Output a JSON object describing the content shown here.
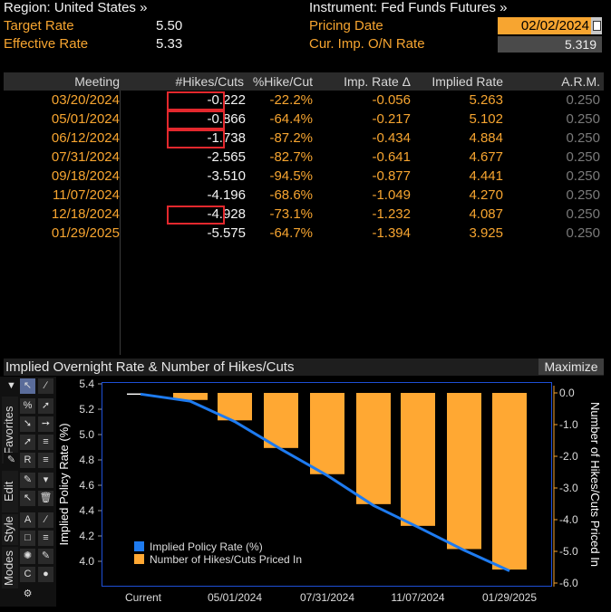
{
  "header": {
    "region_label": "Region: United States »",
    "target_rate_label": "Target Rate",
    "target_rate_value": "5.50",
    "effective_rate_label": "Effective Rate",
    "effective_rate_value": "5.33",
    "instrument_label": "Instrument: Fed Funds Futures »",
    "pricing_date_label": "Pricing Date",
    "pricing_date_value": "02/02/2024",
    "cur_imp_label": "Cur. Imp. O/N Rate",
    "cur_imp_value": "5.319"
  },
  "table": {
    "columns": [
      "Meeting",
      "#Hikes/Cuts",
      "%Hike/Cut",
      "Imp. Rate Δ",
      "Implied Rate",
      "A.R.M."
    ],
    "rows": [
      {
        "meeting": "03/20/2024",
        "hikes": "-0.222",
        "pct": "-22.2%",
        "imp_delta": "-0.056",
        "implied": "5.263",
        "arm": "0.250",
        "highlighted": true
      },
      {
        "meeting": "05/01/2024",
        "hikes": "-0.866",
        "pct": "-64.4%",
        "imp_delta": "-0.217",
        "implied": "5.102",
        "arm": "0.250",
        "highlighted": true
      },
      {
        "meeting": "06/12/2024",
        "hikes": "-1.738",
        "pct": "-87.2%",
        "imp_delta": "-0.434",
        "implied": "4.884",
        "arm": "0.250",
        "highlighted": true
      },
      {
        "meeting": "07/31/2024",
        "hikes": "-2.565",
        "pct": "-82.7%",
        "imp_delta": "-0.641",
        "implied": "4.677",
        "arm": "0.250",
        "highlighted": false
      },
      {
        "meeting": "09/18/2024",
        "hikes": "-3.510",
        "pct": "-94.5%",
        "imp_delta": "-0.877",
        "implied": "4.441",
        "arm": "0.250",
        "highlighted": false
      },
      {
        "meeting": "11/07/2024",
        "hikes": "-4.196",
        "pct": "-68.6%",
        "imp_delta": "-1.049",
        "implied": "4.270",
        "arm": "0.250",
        "highlighted": false
      },
      {
        "meeting": "12/18/2024",
        "hikes": "-4.928",
        "pct": "-73.1%",
        "imp_delta": "-1.232",
        "implied": "4.087",
        "arm": "0.250",
        "highlighted": true
      },
      {
        "meeting": "01/29/2025",
        "hikes": "-5.575",
        "pct": "-64.7%",
        "imp_delta": "-1.394",
        "implied": "3.925",
        "arm": "0.250",
        "highlighted": false
      }
    ]
  },
  "chart_panel": {
    "title": "Implied Overnight Rate & Number of Hikes/Cuts",
    "maximize_label": "Maximize",
    "tabs": [
      "Favorites",
      "Edit",
      "Style",
      "Modes"
    ]
  },
  "chart_data": {
    "type": "bar",
    "categories": [
      "Current",
      "03/20/2024",
      "05/01/2024",
      "06/12/2024",
      "07/31/2024",
      "09/18/2024",
      "11/07/2024",
      "12/18/2024",
      "01/29/2025"
    ],
    "x_tick_labels": [
      "Current",
      "05/01/2024",
      "07/31/2024",
      "11/07/2024",
      "01/29/2025"
    ],
    "series": [
      {
        "name": "Implied Policy Rate (%)",
        "type": "line",
        "axis": "left",
        "color": "#1e7bf0",
        "values": [
          5.319,
          5.263,
          5.102,
          4.884,
          4.677,
          4.441,
          4.27,
          4.087,
          3.925
        ]
      },
      {
        "name": "Number of Hikes/Cuts Priced In",
        "type": "bar",
        "axis": "right",
        "color": "#ffa833",
        "values": [
          0,
          -0.222,
          -0.866,
          -1.738,
          -2.565,
          -3.51,
          -4.196,
          -4.928,
          -5.575
        ]
      }
    ],
    "ylabel_left": "Implied Policy Rate (%)",
    "ylabel_right": "Number of Hikes/Cuts Priced In",
    "ylim_left": [
      3.9,
      5.4
    ],
    "ylim_right": [
      -6.0,
      0.5
    ],
    "yticks_left": [
      "5.4",
      "5.2",
      "5.0",
      "4.8",
      "4.6",
      "4.4",
      "4.2",
      "4.0"
    ],
    "yticks_right": [
      "0.0",
      "-1.0",
      "-2.0",
      "-3.0",
      "-4.0",
      "-5.0",
      "-6.0"
    ],
    "legend_placement": "bottom-left",
    "grid": false
  }
}
